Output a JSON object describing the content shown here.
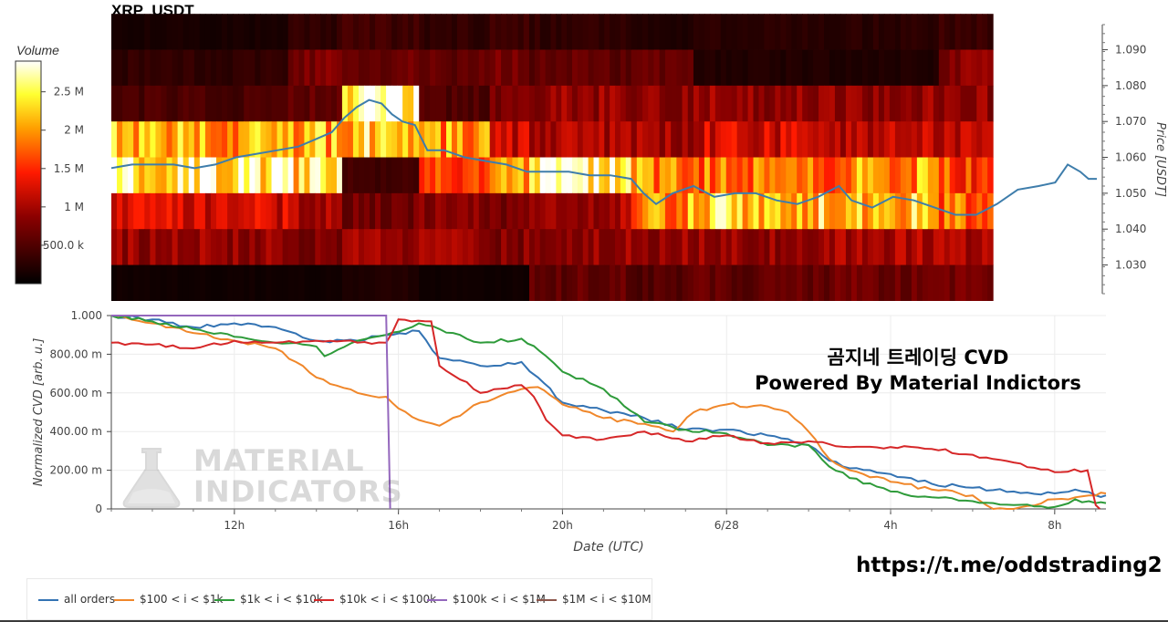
{
  "chart_data": [
    {
      "type": "heatmap",
      "title": "XRP_USDT",
      "ylabel": "Price [USDT]",
      "ylim": [
        1.022,
        1.097
      ],
      "yticks": [
        1.03,
        1.04,
        1.05,
        1.06,
        1.07,
        1.08,
        1.09
      ],
      "colorbar": {
        "title": "Volume",
        "range": [
          0,
          2.9
        ],
        "ticks": [
          {
            "value": 0.5,
            "label": "500.0 k"
          },
          {
            "value": 1.0,
            "label": "1 M"
          },
          {
            "value": 1.5,
            "label": "1.5 M"
          },
          {
            "value": 2.0,
            "label": "2 M"
          },
          {
            "value": 2.5,
            "label": "2.5 M"
          }
        ]
      },
      "price_bands": [
        1.095,
        1.085,
        1.075,
        1.065,
        1.055,
        1.045,
        1.035,
        1.025
      ],
      "segments": [
        {
          "x0": 9.5,
          "x1": 13.75,
          "volumes": [
            0.15,
            0.3,
            0.45,
            2.1,
            2.6,
            1.2,
            0.9,
            0.1
          ]
        },
        {
          "x0": 13.75,
          "x1": 15.05,
          "volumes": [
            0.3,
            0.8,
            0.6,
            2.1,
            2.4,
            1.0,
            0.8,
            0.1
          ]
        },
        {
          "x0": 15.05,
          "x1": 16.9,
          "volumes": [
            0.4,
            0.7,
            2.7,
            2.3,
            0.4,
            0.7,
            0.9,
            0.2
          ]
        },
        {
          "x0": 16.9,
          "x1": 18.6,
          "volumes": [
            0.3,
            0.6,
            0.5,
            2.0,
            1.5,
            0.8,
            0.9,
            0.1
          ]
        },
        {
          "x0": 18.6,
          "x1": 19.55,
          "volumes": [
            0.4,
            0.7,
            0.7,
            1.2,
            1.9,
            0.7,
            0.8,
            0.1
          ]
        },
        {
          "x0": 19.55,
          "x1": 22.0,
          "volumes": [
            0.3,
            0.6,
            0.9,
            1.0,
            2.5,
            1.0,
            0.9,
            0.6
          ]
        },
        {
          "x0": 22.0,
          "x1": 23.5,
          "volumes": [
            0.2,
            0.6,
            0.9,
            1.0,
            2.0,
            2.0,
            0.9,
            0.5
          ]
        },
        {
          "x0": 23.5,
          "x1": 26.9,
          "volumes": [
            0.25,
            0.2,
            0.9,
            1.2,
            1.8,
            2.3,
            0.9,
            0.6
          ]
        },
        {
          "x0": 26.9,
          "x1": 29.4,
          "volumes": [
            0.25,
            0.2,
            0.9,
            1.1,
            2.0,
            2.2,
            1.0,
            0.7
          ]
        },
        {
          "x0": 29.4,
          "x1": 30.7,
          "volumes": [
            0.35,
            0.8,
            0.9,
            1.2,
            1.6,
            1.8,
            1.0,
            0.7
          ]
        }
      ],
      "price_series": [
        [
          9.5,
          1.057
        ],
        [
          10.0,
          1.058
        ],
        [
          10.5,
          1.058
        ],
        [
          11.0,
          1.058
        ],
        [
          11.5,
          1.057
        ],
        [
          12.0,
          1.058
        ],
        [
          12.5,
          1.06
        ],
        [
          13.0,
          1.061
        ],
        [
          13.5,
          1.062
        ],
        [
          14.0,
          1.063
        ],
        [
          14.4,
          1.065
        ],
        [
          14.8,
          1.067
        ],
        [
          15.1,
          1.071
        ],
        [
          15.4,
          1.074
        ],
        [
          15.7,
          1.076
        ],
        [
          16.0,
          1.075
        ],
        [
          16.25,
          1.072
        ],
        [
          16.5,
          1.07
        ],
        [
          16.8,
          1.069
        ],
        [
          17.1,
          1.062
        ],
        [
          17.5,
          1.062
        ],
        [
          18.0,
          1.06
        ],
        [
          18.5,
          1.059
        ],
        [
          19.0,
          1.058
        ],
        [
          19.5,
          1.056
        ],
        [
          20.0,
          1.056
        ],
        [
          20.5,
          1.056
        ],
        [
          21.0,
          1.055
        ],
        [
          21.5,
          1.055
        ],
        [
          22.0,
          1.054
        ],
        [
          22.3,
          1.05
        ],
        [
          22.6,
          1.047
        ],
        [
          23.0,
          1.05
        ],
        [
          23.5,
          1.052
        ],
        [
          24.0,
          1.049
        ],
        [
          24.5,
          1.05
        ],
        [
          25.0,
          1.05
        ],
        [
          25.5,
          1.048
        ],
        [
          26.0,
          1.047
        ],
        [
          26.5,
          1.049
        ],
        [
          27.0,
          1.052
        ],
        [
          27.3,
          1.048
        ],
        [
          27.8,
          1.046
        ],
        [
          28.3,
          1.049
        ],
        [
          28.8,
          1.048
        ],
        [
          29.3,
          1.046
        ],
        [
          29.8,
          1.044
        ],
        [
          30.3,
          1.044
        ],
        [
          30.8,
          1.047
        ],
        [
          31.3,
          1.051
        ],
        [
          31.8,
          1.052
        ],
        [
          32.2,
          1.053
        ],
        [
          32.5,
          1.058
        ],
        [
          32.8,
          1.056
        ],
        [
          33.0,
          1.054
        ],
        [
          33.2,
          1.054
        ]
      ],
      "price_color": "#3e7dab"
    },
    {
      "type": "line",
      "xlabel": "Date (UTC)",
      "ylabel": "Normalized CVD [arb. u.]",
      "ylim": [
        0,
        1.0
      ],
      "xlim": [
        9.0,
        33.25
      ],
      "yticks": [
        {
          "value": 0,
          "label": "0"
        },
        {
          "value": 0.2,
          "label": "200.00 m"
        },
        {
          "value": 0.4,
          "label": "400.00 m"
        },
        {
          "value": 0.6,
          "label": "600.00 m"
        },
        {
          "value": 0.8,
          "label": "800.00 m"
        },
        {
          "value": 1.0,
          "label": "1.000"
        }
      ],
      "xticks": [
        {
          "value": 12,
          "label": "12h"
        },
        {
          "value": 16,
          "label": "16h"
        },
        {
          "value": 20,
          "label": "20h"
        },
        {
          "value": 24,
          "label": "6/28"
        },
        {
          "value": 28,
          "label": "4h"
        },
        {
          "value": 32,
          "label": "8h"
        }
      ],
      "legend": "bottom",
      "series": [
        {
          "name": "all orders",
          "color": "#3373b3",
          "points": [
            [
              9.0,
              1.0
            ],
            [
              10.0,
              0.98
            ],
            [
              11.0,
              0.94
            ],
            [
              12.0,
              0.96
            ],
            [
              13.0,
              0.94
            ],
            [
              14.0,
              0.87
            ],
            [
              15.0,
              0.87
            ],
            [
              15.7,
              0.9
            ],
            [
              16.5,
              0.92
            ],
            [
              17.0,
              0.78
            ],
            [
              18.0,
              0.74
            ],
            [
              19.0,
              0.76
            ],
            [
              19.4,
              0.68
            ],
            [
              20.0,
              0.55
            ],
            [
              21.0,
              0.51
            ],
            [
              22.0,
              0.47
            ],
            [
              23.0,
              0.41
            ],
            [
              24.0,
              0.41
            ],
            [
              25.0,
              0.38
            ],
            [
              26.0,
              0.33
            ],
            [
              26.5,
              0.25
            ],
            [
              27.0,
              0.21
            ],
            [
              28.0,
              0.18
            ],
            [
              29.0,
              0.13
            ],
            [
              30.0,
              0.11
            ],
            [
              31.0,
              0.09
            ],
            [
              32.0,
              0.08
            ],
            [
              32.5,
              0.1
            ],
            [
              33.0,
              0.07
            ],
            [
              33.25,
              0.07
            ]
          ]
        },
        {
          "name": "$100 < i < $1k",
          "color": "#f0872a",
          "points": [
            [
              9.0,
              1.0
            ],
            [
              10.0,
              0.96
            ],
            [
              11.0,
              0.91
            ],
            [
              12.0,
              0.87
            ],
            [
              13.0,
              0.83
            ],
            [
              13.5,
              0.76
            ],
            [
              14.0,
              0.68
            ],
            [
              15.0,
              0.6
            ],
            [
              15.7,
              0.58
            ],
            [
              16.0,
              0.52
            ],
            [
              16.5,
              0.46
            ],
            [
              17.0,
              0.43
            ],
            [
              18.0,
              0.55
            ],
            [
              19.0,
              0.62
            ],
            [
              19.4,
              0.63
            ],
            [
              20.0,
              0.54
            ],
            [
              21.0,
              0.47
            ],
            [
              22.0,
              0.44
            ],
            [
              22.7,
              0.4
            ],
            [
              23.2,
              0.5
            ],
            [
              24.0,
              0.54
            ],
            [
              25.0,
              0.53
            ],
            [
              25.5,
              0.5
            ],
            [
              26.0,
              0.4
            ],
            [
              26.5,
              0.26
            ],
            [
              27.0,
              0.2
            ],
            [
              28.0,
              0.14
            ],
            [
              29.0,
              0.1
            ],
            [
              30.0,
              0.07
            ],
            [
              30.5,
              0.0
            ],
            [
              31.0,
              0.0
            ],
            [
              32.0,
              0.05
            ],
            [
              32.5,
              0.06
            ],
            [
              33.0,
              0.07
            ],
            [
              33.25,
              0.08
            ]
          ]
        },
        {
          "name": "$1k < i < $10k",
          "color": "#2e9b3a",
          "points": [
            [
              9.0,
              1.0
            ],
            [
              10.0,
              0.97
            ],
            [
              11.0,
              0.93
            ],
            [
              12.0,
              0.89
            ],
            [
              13.0,
              0.86
            ],
            [
              14.0,
              0.84
            ],
            [
              14.2,
              0.79
            ],
            [
              15.0,
              0.87
            ],
            [
              15.7,
              0.9
            ],
            [
              16.5,
              0.96
            ],
            [
              17.0,
              0.93
            ],
            [
              18.0,
              0.86
            ],
            [
              19.0,
              0.88
            ],
            [
              19.6,
              0.79
            ],
            [
              20.0,
              0.71
            ],
            [
              21.0,
              0.62
            ],
            [
              22.0,
              0.45
            ],
            [
              23.0,
              0.41
            ],
            [
              24.0,
              0.39
            ],
            [
              25.0,
              0.33
            ],
            [
              26.0,
              0.33
            ],
            [
              26.5,
              0.22
            ],
            [
              27.0,
              0.16
            ],
            [
              28.0,
              0.09
            ],
            [
              29.0,
              0.06
            ],
            [
              30.0,
              0.04
            ],
            [
              30.5,
              0.03
            ],
            [
              31.0,
              0.02
            ],
            [
              32.0,
              0.01
            ],
            [
              32.5,
              0.05
            ],
            [
              33.0,
              0.03
            ],
            [
              33.25,
              0.03
            ]
          ]
        },
        {
          "name": "$10k < i < $100k",
          "color": "#d62728",
          "points": [
            [
              9.0,
              0.86
            ],
            [
              10.0,
              0.85
            ],
            [
              11.0,
              0.83
            ],
            [
              12.0,
              0.87
            ],
            [
              13.0,
              0.86
            ],
            [
              14.0,
              0.87
            ],
            [
              15.0,
              0.86
            ],
            [
              15.7,
              0.86
            ],
            [
              16.0,
              0.98
            ],
            [
              16.8,
              0.97
            ],
            [
              17.0,
              0.74
            ],
            [
              18.0,
              0.6
            ],
            [
              19.0,
              0.64
            ],
            [
              19.3,
              0.58
            ],
            [
              19.6,
              0.46
            ],
            [
              20.0,
              0.38
            ],
            [
              21.0,
              0.36
            ],
            [
              22.0,
              0.4
            ],
            [
              23.0,
              0.35
            ],
            [
              24.0,
              0.38
            ],
            [
              25.0,
              0.34
            ],
            [
              26.0,
              0.35
            ],
            [
              27.0,
              0.32
            ],
            [
              28.0,
              0.32
            ],
            [
              29.0,
              0.31
            ],
            [
              30.0,
              0.28
            ],
            [
              31.0,
              0.24
            ],
            [
              32.0,
              0.19
            ],
            [
              32.8,
              0.2
            ],
            [
              33.0,
              0.02
            ],
            [
              33.1,
              0.0
            ]
          ]
        },
        {
          "name": "$100k < i < $1M",
          "color": "#9467bd",
          "points": [
            [
              9.0,
              1.0
            ],
            [
              15.7,
              1.0
            ],
            [
              15.8,
              0.0
            ]
          ]
        },
        {
          "name": "$1M < i < $10M",
          "color": "#8c564b",
          "points": []
        }
      ]
    }
  ],
  "overlay": {
    "title_kr": "곰지네 트레이딩 CVD",
    "subtitle": "Powered By Material Indictors",
    "url": "https://t.me/oddstrading2"
  },
  "watermark": {
    "line1": "MATERIAL",
    "line2": "INDICATORS"
  }
}
